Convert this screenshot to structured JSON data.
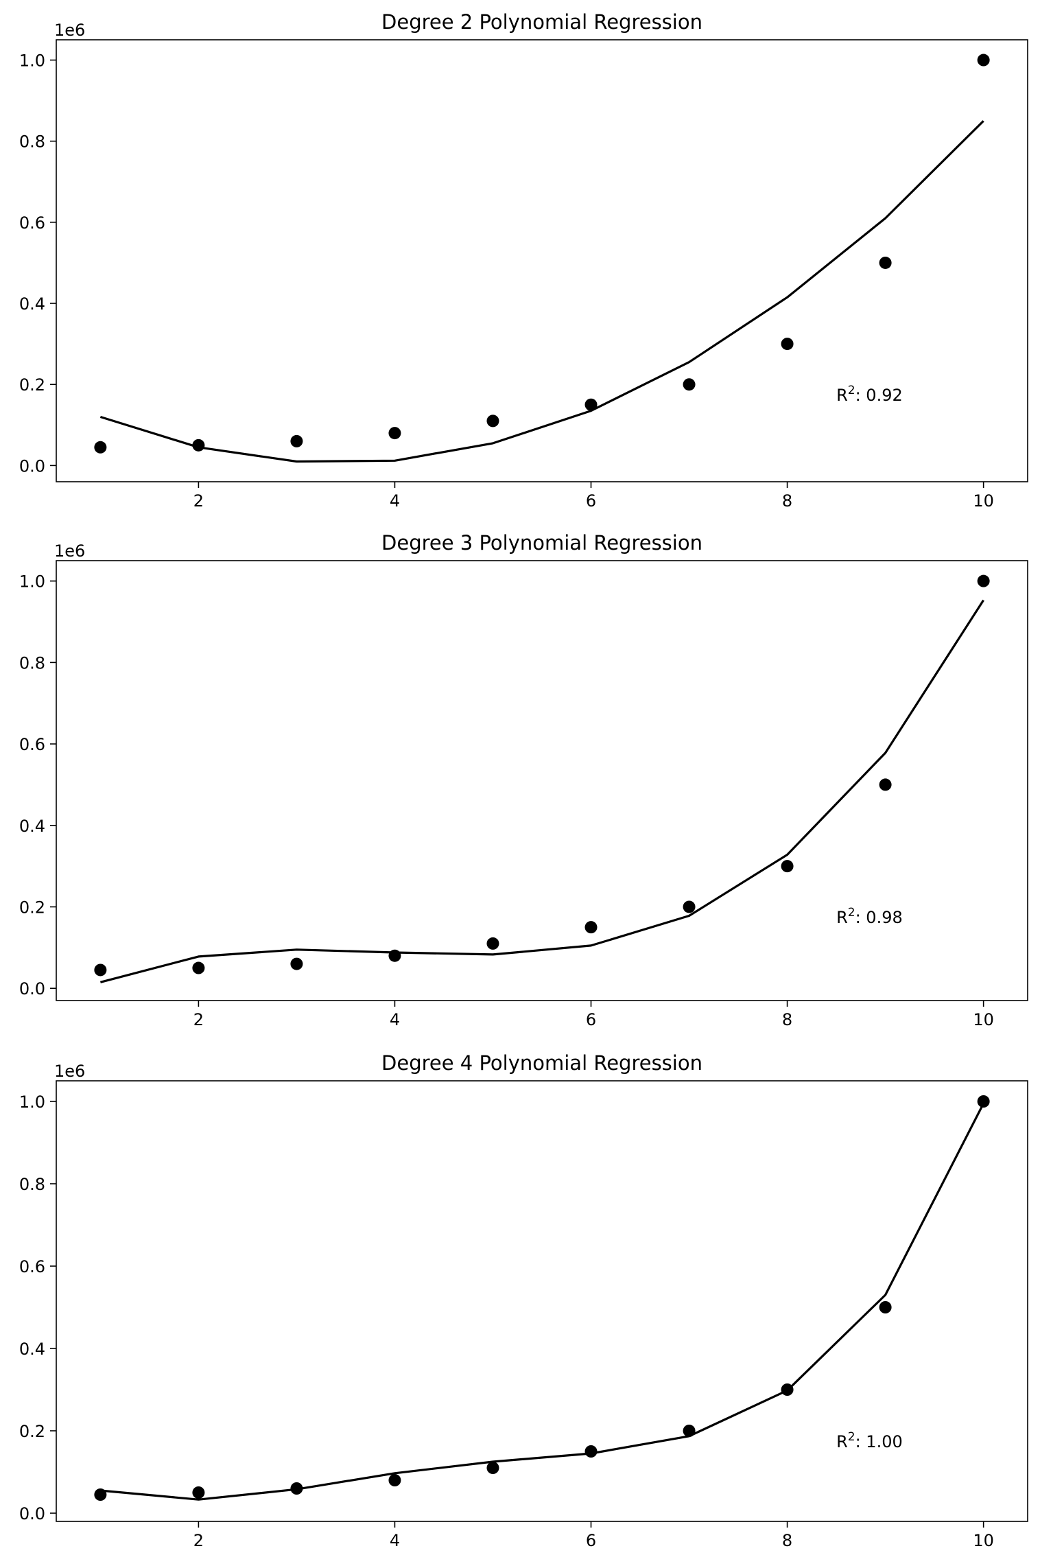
{
  "chart_data": [
    {
      "type": "scatter",
      "title": "Degree 2 Polynomial Regression",
      "offset_label": "1e6",
      "annotation": {
        "prefix": "R",
        "sup": "2",
        "suffix": ": 0.92"
      },
      "xlim": [
        0.55,
        10.45
      ],
      "ylim": [
        -0.04,
        1.05
      ],
      "xticks": [
        2,
        4,
        6,
        8,
        10
      ],
      "yticks": [
        0.0,
        0.2,
        0.4,
        0.6,
        0.8,
        1.0
      ],
      "ytick_labels": [
        "0.0",
        "0.2",
        "0.4",
        "0.6",
        "0.8",
        "1.0"
      ],
      "series": [
        {
          "kind": "scatter",
          "color": "#000000",
          "x": [
            1,
            2,
            3,
            4,
            5,
            6,
            7,
            8,
            9,
            10
          ],
          "y": [
            0.045,
            0.05,
            0.06,
            0.08,
            0.11,
            0.15,
            0.2,
            0.3,
            0.5,
            1.0
          ]
        },
        {
          "kind": "line",
          "color": "#000000",
          "x": [
            1,
            2,
            3,
            4,
            5,
            6,
            7,
            8,
            9,
            10
          ],
          "y": [
            0.12,
            0.045,
            0.01,
            0.012,
            0.055,
            0.135,
            0.255,
            0.415,
            0.61,
            0.85
          ]
        }
      ]
    },
    {
      "type": "scatter",
      "title": "Degree 3 Polynomial Regression",
      "offset_label": "1e6",
      "annotation": {
        "prefix": "R",
        "sup": "2",
        "suffix": ": 0.98"
      },
      "xlim": [
        0.55,
        10.45
      ],
      "ylim": [
        -0.03,
        1.05
      ],
      "xticks": [
        2,
        4,
        6,
        8,
        10
      ],
      "yticks": [
        0.0,
        0.2,
        0.4,
        0.6,
        0.8,
        1.0
      ],
      "ytick_labels": [
        "0.0",
        "0.2",
        "0.4",
        "0.6",
        "0.8",
        "1.0"
      ],
      "series": [
        {
          "kind": "scatter",
          "color": "#000000",
          "x": [
            1,
            2,
            3,
            4,
            5,
            6,
            7,
            8,
            9,
            10
          ],
          "y": [
            0.045,
            0.05,
            0.06,
            0.08,
            0.11,
            0.15,
            0.2,
            0.3,
            0.5,
            1.0
          ]
        },
        {
          "kind": "line",
          "color": "#000000",
          "x": [
            1,
            2,
            3,
            4,
            5,
            6,
            7,
            8,
            9,
            10
          ],
          "y": [
            0.015,
            0.078,
            0.095,
            0.088,
            0.083,
            0.105,
            0.178,
            0.328,
            0.578,
            0.953
          ]
        }
      ]
    },
    {
      "type": "scatter",
      "title": "Degree 4 Polynomial Regression",
      "offset_label": "1e6",
      "annotation": {
        "prefix": "R",
        "sup": "2",
        "suffix": ": 1.00"
      },
      "xlim": [
        0.55,
        10.45
      ],
      "ylim": [
        -0.02,
        1.05
      ],
      "xticks": [
        2,
        4,
        6,
        8,
        10
      ],
      "yticks": [
        0.0,
        0.2,
        0.4,
        0.6,
        0.8,
        1.0
      ],
      "ytick_labels": [
        "0.0",
        "0.2",
        "0.4",
        "0.6",
        "0.8",
        "1.0"
      ],
      "series": [
        {
          "kind": "scatter",
          "color": "#000000",
          "x": [
            1,
            2,
            3,
            4,
            5,
            6,
            7,
            8,
            9,
            10
          ],
          "y": [
            0.045,
            0.05,
            0.06,
            0.08,
            0.11,
            0.15,
            0.2,
            0.3,
            0.5,
            1.0
          ]
        },
        {
          "kind": "line",
          "color": "#000000",
          "x": [
            1,
            2,
            3,
            4,
            5,
            6,
            7,
            8,
            9,
            10
          ],
          "y": [
            0.055,
            0.033,
            0.058,
            0.097,
            0.125,
            0.145,
            0.187,
            0.298,
            0.53,
            0.995
          ]
        }
      ]
    }
  ]
}
